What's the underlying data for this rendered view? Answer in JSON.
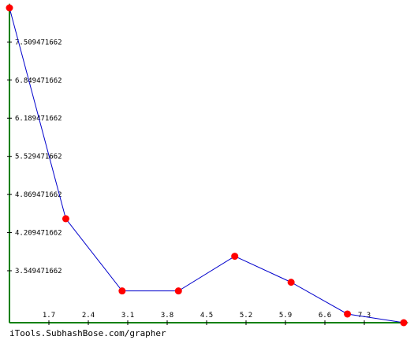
{
  "chart_data": {
    "type": "line",
    "x": [
      1.0,
      2.0,
      3.0,
      4.0,
      5.0,
      6.0,
      7.0,
      8.0
    ],
    "y": [
      8.1,
      4.45,
      3.2,
      3.2,
      3.8,
      3.35,
      2.8,
      2.65
    ],
    "xlim": [
      1.0,
      8.0
    ],
    "ylim": [
      2.65,
      8.1
    ],
    "x_ticks": [
      1.7,
      2.4,
      3.1,
      3.8,
      4.5,
      5.2,
      5.9,
      6.6,
      7.3
    ],
    "x_tick_labels": [
      "1.7",
      "2.4",
      "3.1",
      "3.8",
      "4.5",
      "5.2",
      "5.9",
      "6.6",
      "7.3"
    ],
    "y_ticks": [
      3.549471662,
      4.209471662,
      4.869471662,
      5.529471662,
      6.189471662,
      6.849471662,
      7.509471662
    ],
    "y_tick_labels": [
      "3.549471662",
      "4.209471662",
      "4.869471662",
      "5.529471662",
      "6.189471662",
      "6.849471662",
      "7.509471662"
    ],
    "line_color": "#0000cc",
    "marker_color": "#ff0000",
    "axis_color": "#008000",
    "grid": false
  },
  "footer": {
    "credit": "iTools.SubhashBose.com/grapher"
  }
}
